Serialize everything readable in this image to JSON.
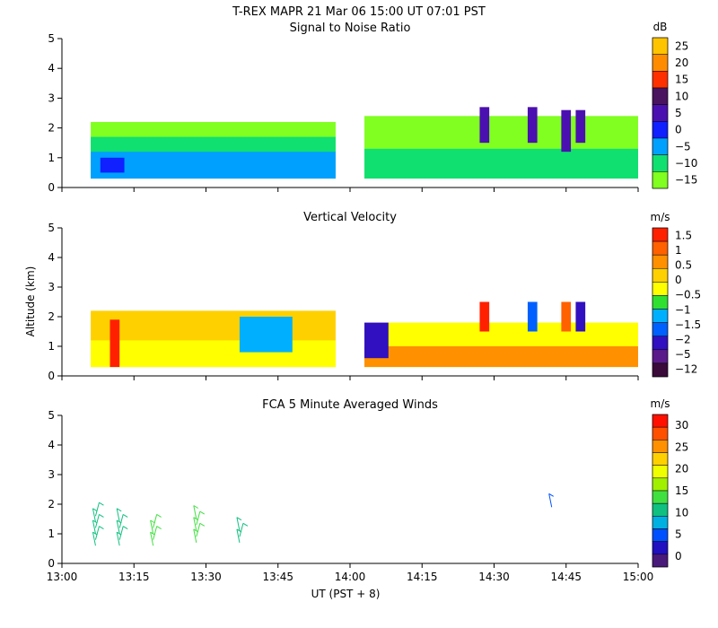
{
  "figure": {
    "title": "T-REX   MAPR 21 Mar 06   15:00 UT   07:01   PST",
    "xlabel": "UT  (PST + 8)",
    "ylabel": "Altitude (km)",
    "x_tick_labels": [
      "13:00",
      "13:15",
      "13:30",
      "13:45",
      "14:00",
      "14:15",
      "14:30",
      "14:45",
      "15:00"
    ],
    "y_tick_labels": [
      "0",
      "1",
      "2",
      "3",
      "4",
      "5"
    ]
  },
  "chart_data": [
    {
      "type": "heatmap",
      "title": "Signal to Noise Ratio",
      "units": "dB",
      "xlabel": "UT  (PST + 8)",
      "ylabel": "Altitude (km)",
      "xlim_minutes_after_1300": [
        0,
        120
      ],
      "ylim": [
        0,
        5
      ],
      "colorbar": {
        "labels": [
          "25",
          "20",
          "15",
          "10",
          "5",
          "0",
          "−5",
          "−10",
          "−15"
        ],
        "colors": [
          "#ffc400",
          "#ff8c00",
          "#ff3000",
          "#4a145e",
          "#4b10b0",
          "#1020ff",
          "#00a0ff",
          "#10e070",
          "#80ff20"
        ]
      },
      "data_gaps_minutes": [
        [
          57,
          63
        ]
      ],
      "cells": [
        {
          "t0": 6,
          "t1": 57,
          "z0": 0.3,
          "z1": 2.2,
          "value": -15
        },
        {
          "t0": 6,
          "t1": 57,
          "z0": 0.3,
          "z1": 1.7,
          "value": -10
        },
        {
          "t0": 6,
          "t1": 57,
          "z0": 0.3,
          "z1": 1.2,
          "value": -5
        },
        {
          "t0": 8,
          "t1": 13,
          "z0": 0.5,
          "z1": 1.0,
          "value": 0
        },
        {
          "t0": 63,
          "t1": 120,
          "z0": 0.3,
          "z1": 2.4,
          "value": -15
        },
        {
          "t0": 63,
          "t1": 120,
          "z0": 0.3,
          "z1": 1.3,
          "value": -10
        },
        {
          "t0": 87,
          "t1": 89,
          "z0": 1.5,
          "z1": 2.7,
          "value": 5
        },
        {
          "t0": 97,
          "t1": 99,
          "z0": 1.5,
          "z1": 2.7,
          "value": 5
        },
        {
          "t0": 104,
          "t1": 106,
          "z0": 1.2,
          "z1": 2.6,
          "value": 5
        },
        {
          "t0": 107,
          "t1": 109,
          "z0": 1.5,
          "z1": 2.6,
          "value": 5
        }
      ]
    },
    {
      "type": "heatmap",
      "title": "Vertical Velocity",
      "units": "m/s",
      "xlabel": "UT  (PST + 8)",
      "ylabel": "Altitude (km)",
      "xlim_minutes_after_1300": [
        0,
        120
      ],
      "ylim": [
        0,
        5
      ],
      "colorbar": {
        "labels": [
          "1.5",
          "1",
          "0.5",
          "0",
          "−0.5",
          "−1",
          "−1.5",
          "−2",
          "−5",
          "−12"
        ],
        "colors": [
          "#ff2000",
          "#ff6000",
          "#ff9000",
          "#ffd000",
          "#ffff00",
          "#30e030",
          "#00b0ff",
          "#0060ff",
          "#3010c0",
          "#5a1a8a",
          "#3a0a3a"
        ]
      },
      "data_gaps_minutes": [
        [
          57,
          63
        ]
      ],
      "cells": [
        {
          "t0": 6,
          "t1": 57,
          "z0": 0.3,
          "z1": 2.2,
          "value": 0
        },
        {
          "t0": 6,
          "t1": 57,
          "z0": 0.3,
          "z1": 1.2,
          "value": -0.5
        },
        {
          "t0": 10,
          "t1": 12,
          "z0": 0.3,
          "z1": 1.9,
          "value": 1.5
        },
        {
          "t0": 37,
          "t1": 48,
          "z0": 0.8,
          "z1": 2.0,
          "value": -1
        },
        {
          "t0": 63,
          "t1": 120,
          "z0": 0.3,
          "z1": 1.8,
          "value": -0.5
        },
        {
          "t0": 63,
          "t1": 120,
          "z0": 0.3,
          "z1": 1.0,
          "value": 0.5
        },
        {
          "t0": 63,
          "t1": 68,
          "z0": 0.6,
          "z1": 1.8,
          "value": -2
        },
        {
          "t0": 87,
          "t1": 89,
          "z0": 1.5,
          "z1": 2.5,
          "value": 1.5
        },
        {
          "t0": 97,
          "t1": 99,
          "z0": 1.5,
          "z1": 2.5,
          "value": -1.5
        },
        {
          "t0": 104,
          "t1": 106,
          "z0": 1.5,
          "z1": 2.5,
          "value": 1
        },
        {
          "t0": 107,
          "t1": 109,
          "z0": 1.5,
          "z1": 2.5,
          "value": -2
        }
      ]
    },
    {
      "type": "barbs",
      "title": "FCA 5 Minute Averaged Winds",
      "units": "m/s",
      "xlabel": "UT  (PST + 8)",
      "ylabel": "Altitude (km)",
      "xlim_minutes_after_1300": [
        0,
        120
      ],
      "ylim": [
        0,
        5
      ],
      "colorbar": {
        "labels": [
          "30",
          "25",
          "20",
          "15",
          "10",
          "5",
          "0"
        ],
        "colors": [
          "#ff1000",
          "#ff5000",
          "#ff9000",
          "#ffd000",
          "#f0ff00",
          "#a0f000",
          "#40e040",
          "#10c080",
          "#00b0e0",
          "#0050ff",
          "#2010c0",
          "#4a1a7a"
        ]
      },
      "profiles": [
        {
          "time_min": 7,
          "altitudes": [
            0.6,
            0.8,
            1.0,
            1.2,
            1.4,
            1.6
          ],
          "speed": 10
        },
        {
          "time_min": 12,
          "altitudes": [
            0.6,
            0.8,
            1.0,
            1.2,
            1.4
          ],
          "speed": 11
        },
        {
          "time_min": 19,
          "altitudes": [
            0.6,
            0.8,
            1.0,
            1.2
          ],
          "speed": 18
        },
        {
          "time_min": 28,
          "altitudes": [
            0.7,
            0.9,
            1.1,
            1.3,
            1.5
          ],
          "speed": 16
        },
        {
          "time_min": 37,
          "altitudes": [
            0.7,
            0.9,
            1.1
          ],
          "speed": 13
        },
        {
          "time_min": 102,
          "altitudes": [
            1.9
          ],
          "speed": 6
        }
      ]
    }
  ]
}
